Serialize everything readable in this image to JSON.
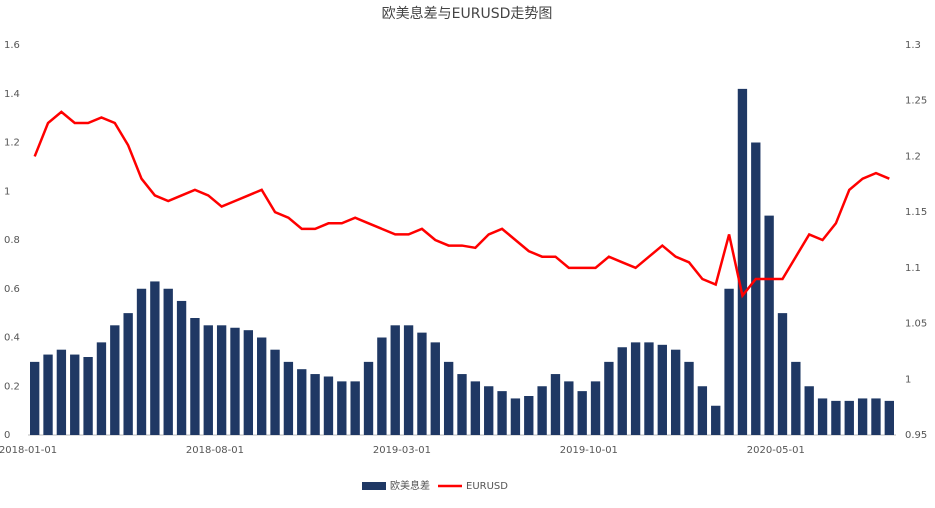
{
  "chart_data": {
    "type": "bar-line",
    "title": "欧美息差与EURUSD走势图",
    "categories": [
      "2018-01-01",
      null,
      null,
      null,
      null,
      null,
      null,
      null,
      null,
      null,
      null,
      null,
      null,
      null,
      "2018-08-01",
      null,
      null,
      null,
      null,
      null,
      null,
      null,
      null,
      null,
      null,
      null,
      null,
      null,
      "2019-03-01",
      null,
      null,
      null,
      null,
      null,
      null,
      null,
      null,
      null,
      null,
      null,
      null,
      null,
      "2019-10-01",
      null,
      null,
      null,
      null,
      null,
      null,
      null,
      null,
      null,
      null,
      null,
      null,
      null,
      "2020-05-01",
      null,
      null,
      null,
      null,
      null,
      null,
      null,
      null
    ],
    "series": [
      {
        "name": "欧美息差",
        "color": "#1f3864",
        "type": "bar",
        "values": [
          0.3,
          0.33,
          0.35,
          0.33,
          0.32,
          0.38,
          0.45,
          0.5,
          0.6,
          0.63,
          0.6,
          0.55,
          0.48,
          0.45,
          0.45,
          0.44,
          0.43,
          0.4,
          0.35,
          0.3,
          0.27,
          0.25,
          0.24,
          0.22,
          0.22,
          0.3,
          0.4,
          0.45,
          0.45,
          0.42,
          0.38,
          0.3,
          0.25,
          0.22,
          0.2,
          0.18,
          0.15,
          0.16,
          0.2,
          0.25,
          0.22,
          0.18,
          0.22,
          0.3,
          0.36,
          0.38,
          0.38,
          0.37,
          0.35,
          0.3,
          0.2,
          0.12,
          0.6,
          1.42,
          1.2,
          0.9,
          0.5,
          0.3,
          0.2,
          0.15,
          0.14,
          0.14,
          0.15,
          0.15,
          0.14
        ]
      },
      {
        "name": "EURUSD",
        "color": "#ff0000",
        "type": "line",
        "axis": "y2",
        "values": [
          1.2,
          1.23,
          1.24,
          1.23,
          1.23,
          1.235,
          1.23,
          1.21,
          1.18,
          1.165,
          1.16,
          1.165,
          1.17,
          1.165,
          1.155,
          1.16,
          1.165,
          1.17,
          1.15,
          1.145,
          1.135,
          1.135,
          1.14,
          1.14,
          1.145,
          1.14,
          1.135,
          1.13,
          1.13,
          1.135,
          1.125,
          1.12,
          1.12,
          1.118,
          1.13,
          1.135,
          1.125,
          1.115,
          1.11,
          1.11,
          1.1,
          1.1,
          1.1,
          1.11,
          1.105,
          1.1,
          1.11,
          1.12,
          1.11,
          1.105,
          1.09,
          1.085,
          1.13,
          1.075,
          1.09,
          1.09,
          1.09,
          1.11,
          1.13,
          1.125,
          1.14,
          1.17,
          1.18,
          1.185,
          1.18
        ]
      }
    ],
    "ylim": [
      0,
      1.6
    ],
    "yticks": [
      0,
      0.2,
      0.4,
      0.6,
      0.8,
      1,
      1.2,
      1.4,
      1.6
    ],
    "y2lim": [
      0.95,
      1.3
    ],
    "y2ticks": [
      0.95,
      1,
      1.05,
      1.1,
      1.15,
      1.2,
      1.25,
      1.3
    ]
  }
}
